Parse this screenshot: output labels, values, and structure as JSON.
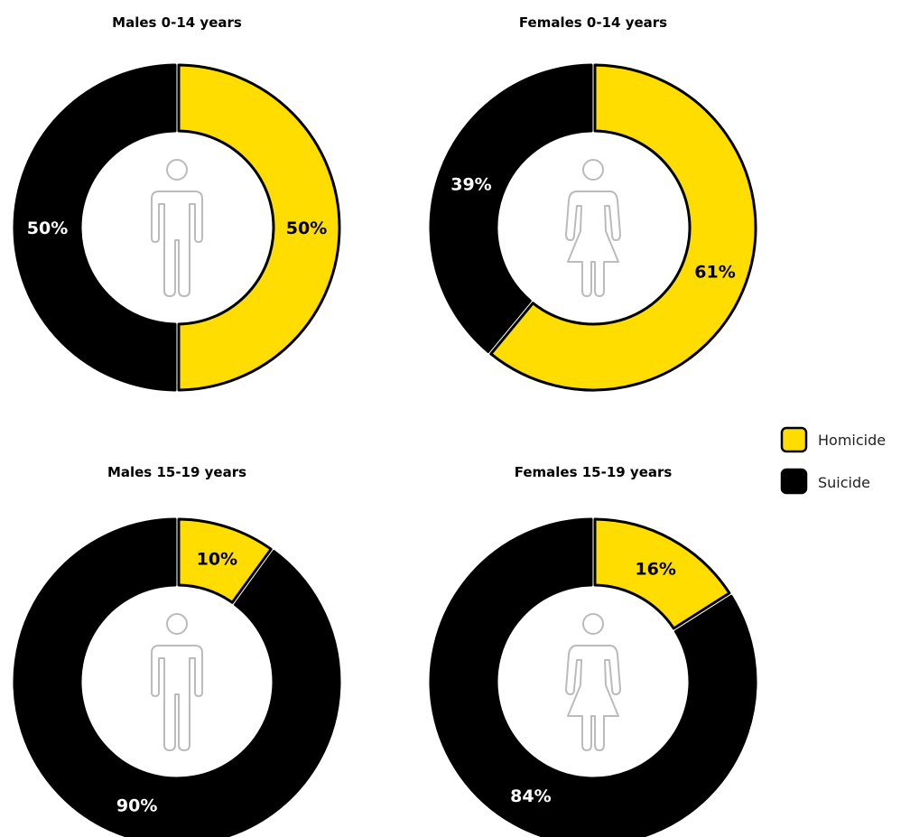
{
  "colors": {
    "homicide": "#ffdd00",
    "suicide": "#000000",
    "outline": "#000000",
    "figure": "#bbbbbb"
  },
  "legend": [
    {
      "label": "Homicide",
      "color": "#ffdd00"
    },
    {
      "label": "Suicide",
      "color": "#000000"
    }
  ],
  "chart_data": [
    {
      "type": "pie",
      "title": "Males 0-14 years",
      "figure": "male-figure-icon",
      "categories": [
        "Homicide",
        "Suicide"
      ],
      "values": [
        50,
        50
      ],
      "labels": [
        "50%",
        "50%"
      ]
    },
    {
      "type": "pie",
      "title": "Females 0-14 years",
      "figure": "female-figure-icon",
      "categories": [
        "Homicide",
        "Suicide"
      ],
      "values": [
        61,
        39
      ],
      "labels": [
        "61%",
        "39%"
      ]
    },
    {
      "type": "pie",
      "title": "Males 15-19 years",
      "figure": "male-figure-icon",
      "categories": [
        "Homicide",
        "Suicide"
      ],
      "values": [
        10,
        90
      ],
      "labels": [
        "10%",
        "90%"
      ]
    },
    {
      "type": "pie",
      "title": "Females 15-19 years",
      "figure": "female-figure-icon",
      "categories": [
        "Homicide",
        "Suicide"
      ],
      "values": [
        16,
        84
      ],
      "labels": [
        "16%",
        "84%"
      ]
    }
  ]
}
